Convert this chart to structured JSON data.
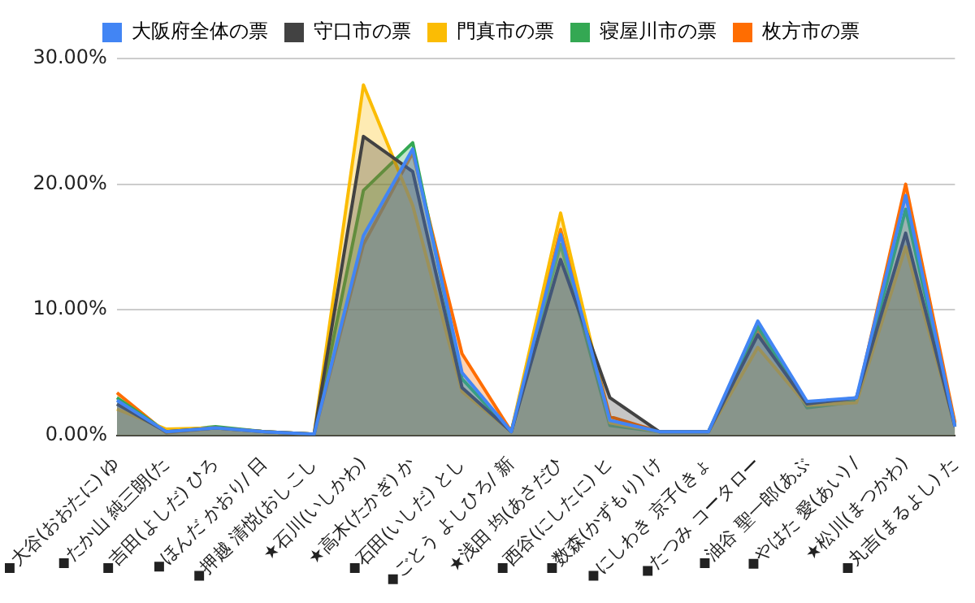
{
  "chart_data": {
    "type": "area",
    "categories": [
      "◆大谷(おおたに) ゆ",
      "◆たか山 純三朗(た",
      "◆吉田(よしだ) ひろ",
      "◆ほんだ かおり/ 日",
      "◆押越 清悦(おしこし",
      "★石川(いしかわ)",
      "★高木(たかぎ) か",
      "◆石田(いしだ) とし",
      "◆ごとう よしひろ/ 新",
      "★浅田 均(あさだひ",
      "◆西谷(にしたに) ヒ",
      "◆数森(かずもり) け",
      "◆にしわき 京子(きょ",
      "◆たつみ コータロー",
      "◆油谷 聖一郎(あぶ",
      "◆やはた 愛(あい) /",
      "★松川(まつかわ)",
      "◆丸吉(まるよし) た"
    ],
    "series": [
      {
        "name": "大阪府全体の票",
        "color": "#4285f4",
        "values": [
          2.8,
          0.3,
          0.6,
          0.3,
          0.1,
          15.9,
          22.8,
          5.0,
          0.3,
          16.0,
          1.2,
          0.3,
          0.3,
          9.1,
          2.7,
          3.0,
          19.1,
          0.7
        ]
      },
      {
        "name": "守口市の票",
        "color": "#424242",
        "values": [
          2.5,
          0.3,
          0.6,
          0.3,
          0.1,
          23.8,
          21.0,
          3.8,
          0.3,
          14.0,
          3.0,
          0.3,
          0.3,
          8.0,
          2.5,
          3.0,
          16.1,
          0.7
        ]
      },
      {
        "name": "門真市の票",
        "color": "#fbbc04",
        "values": [
          2.1,
          0.5,
          0.6,
          0.3,
          0.1,
          27.9,
          18.3,
          3.5,
          0.3,
          17.7,
          1.0,
          0.3,
          0.3,
          7.0,
          2.4,
          2.6,
          15.0,
          0.7
        ]
      },
      {
        "name": "寝屋川市の票",
        "color": "#34a853",
        "values": [
          3.0,
          0.3,
          0.7,
          0.3,
          0.1,
          19.5,
          23.3,
          4.5,
          0.3,
          15.2,
          0.8,
          0.3,
          0.3,
          8.7,
          2.2,
          2.7,
          18.0,
          0.7
        ]
      },
      {
        "name": "枚方市の票",
        "color": "#ff6d01",
        "values": [
          3.4,
          0.2,
          0.6,
          0.3,
          0.1,
          15.2,
          22.5,
          6.5,
          0.3,
          16.4,
          1.5,
          0.3,
          0.3,
          8.4,
          2.5,
          2.7,
          20.0,
          1.0
        ]
      }
    ],
    "ylim": [
      0,
      30
    ],
    "yticks": [
      {
        "value": 0,
        "label": "0.00%"
      },
      {
        "value": 10,
        "label": "10.00%"
      },
      {
        "value": 20,
        "label": "20.00%"
      },
      {
        "value": 30,
        "label": "30.00%"
      }
    ],
    "grid": "y",
    "legend": "top",
    "marker": "none"
  }
}
